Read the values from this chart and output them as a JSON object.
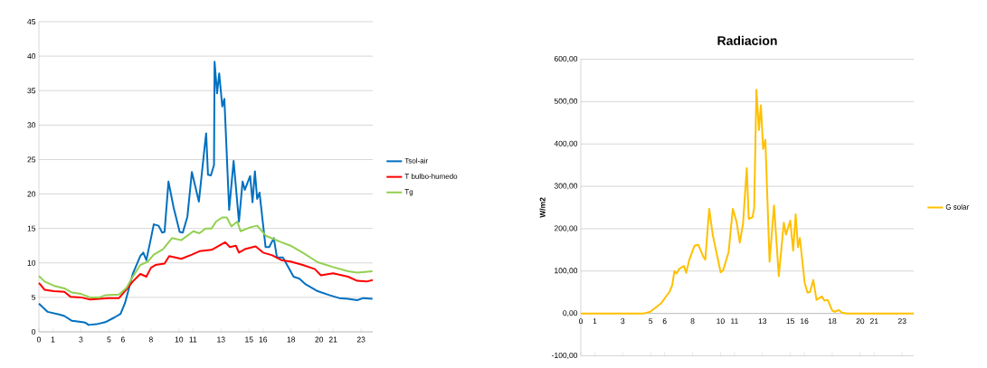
{
  "chart_data": [
    {
      "type": "line",
      "xlim": [
        0,
        23.83
      ],
      "ylim": [
        0,
        45
      ],
      "yticks": [
        0,
        5,
        10,
        15,
        20,
        25,
        30,
        35,
        40,
        45
      ],
      "xticks": [
        0,
        1,
        3,
        5,
        6,
        8,
        10,
        11,
        13,
        15,
        16,
        18,
        20,
        21,
        23
      ],
      "grid": "y",
      "legend": "right",
      "marker": "none",
      "line_style": "solid",
      "series": [
        {
          "name": "Tsol-air",
          "color": "#0070c0",
          "x": [
            0,
            0.63,
            1.5,
            1.82,
            2.36,
            3.12,
            3.34,
            3.55,
            4.1,
            4.74,
            5.4,
            5.83,
            6.15,
            6.7,
            7.24,
            7.45,
            7.67,
            8.0,
            8.2,
            8.54,
            8.8,
            8.97,
            9.25,
            9.62,
            10.05,
            10.27,
            10.6,
            10.92,
            11.42,
            11.85,
            11.94,
            12.07,
            12.28,
            12.5,
            12.54,
            12.72,
            12.87,
            13.09,
            13.24,
            13.58,
            13.9,
            14.28,
            14.54,
            14.7,
            15.08,
            15.25,
            15.42,
            15.58,
            15.75,
            16.18,
            16.44,
            16.77,
            16.99,
            17.42,
            18.18,
            18.6,
            19.04,
            19.9,
            20.78,
            21.43,
            22.07,
            22.72,
            23.16,
            23.81
          ],
          "values": [
            4.1,
            2.9,
            2.5,
            2.3,
            1.6,
            1.4,
            1.3,
            1.0,
            1.1,
            1.4,
            2.1,
            2.6,
            4.2,
            8.4,
            11.0,
            11.5,
            10.4,
            13.6,
            15.6,
            15.4,
            14.4,
            14.5,
            21.8,
            18.0,
            14.5,
            14.4,
            16.7,
            23.2,
            18.9,
            27.2,
            28.8,
            22.8,
            22.7,
            24.2,
            39.2,
            34.6,
            37.5,
            32.7,
            33.8,
            17.7,
            24.8,
            16.0,
            21.8,
            20.6,
            22.6,
            18.8,
            23.3,
            19.3,
            20.2,
            12.3,
            12.3,
            13.6,
            10.8,
            10.8,
            8.0,
            7.7,
            6.9,
            5.9,
            5.3,
            4.9,
            4.8,
            4.6,
            4.9,
            4.8
          ]
        },
        {
          "name": "T bulbo-humedo",
          "color": "#ff0000",
          "x": [
            0,
            0.41,
            1.06,
            1.82,
            2.25,
            3.0,
            3.66,
            4.3,
            4.96,
            5.72,
            6.26,
            6.7,
            7.24,
            7.67,
            8.0,
            8.32,
            8.97,
            9.3,
            10.16,
            10.92,
            11.46,
            12.33,
            13.3,
            13.63,
            14.06,
            14.28,
            14.7,
            15.47,
            16.0,
            16.66,
            17.31,
            17.96,
            18.83,
            19.7,
            20.13,
            21.0,
            22.07,
            22.72,
            23.38,
            23.83
          ],
          "values": [
            7.1,
            6.1,
            5.9,
            5.8,
            5.1,
            5.0,
            4.7,
            4.8,
            4.9,
            4.9,
            6.2,
            7.3,
            8.4,
            8.0,
            9.3,
            9.7,
            9.9,
            11.0,
            10.6,
            11.2,
            11.7,
            11.9,
            13.0,
            12.3,
            12.5,
            11.5,
            12.0,
            12.4,
            11.5,
            11.1,
            10.4,
            10.2,
            9.7,
            9.1,
            8.2,
            8.5,
            8.0,
            7.4,
            7.3,
            7.5
          ]
        },
        {
          "name": "Tg",
          "color": "#92d050",
          "x": [
            0,
            0.41,
            1.06,
            1.82,
            2.36,
            3.0,
            3.66,
            4.3,
            4.74,
            5.72,
            6.26,
            6.7,
            7.24,
            7.78,
            8.2,
            8.86,
            9.5,
            10.16,
            11.03,
            11.46,
            11.9,
            12.33,
            12.65,
            13.09,
            13.41,
            13.74,
            14.17,
            14.39,
            15.14,
            15.58,
            16.23,
            17.31,
            17.96,
            18.83,
            19.9,
            21.0,
            22.07,
            22.72,
            23.81
          ],
          "values": [
            8.1,
            7.3,
            6.7,
            6.3,
            5.7,
            5.5,
            5.0,
            5.0,
            5.3,
            5.4,
            6.4,
            8.0,
            9.7,
            10.2,
            11.2,
            12.0,
            13.6,
            13.3,
            14.6,
            14.3,
            15.0,
            15.0,
            16.0,
            16.6,
            16.6,
            15.3,
            16.0,
            14.6,
            15.2,
            15.4,
            13.9,
            13.0,
            12.5,
            11.5,
            10.1,
            9.4,
            8.8,
            8.6,
            8.8
          ]
        }
      ]
    },
    {
      "type": "line",
      "title": "Radiacion",
      "ylabel": "W/m2",
      "xlim": [
        0,
        23.83
      ],
      "ylim": [
        -100,
        600
      ],
      "yticks": [
        {
          "value": -100,
          "label": "-100,00"
        },
        {
          "value": 0,
          "label": "0,00"
        },
        {
          "value": 100,
          "label": "100,00"
        },
        {
          "value": 200,
          "label": "200,00"
        },
        {
          "value": 300,
          "label": "300,00"
        },
        {
          "value": 400,
          "label": "400,00"
        },
        {
          "value": 500,
          "label": "500,00"
        },
        {
          "value": 600,
          "label": "600,00"
        }
      ],
      "xticks": [
        0,
        1,
        3,
        5,
        6,
        8,
        10,
        11,
        13,
        15,
        16,
        18,
        20,
        21,
        23
      ],
      "grid": "y",
      "legend": "right",
      "marker": "none",
      "line_style": "solid",
      "series": [
        {
          "name": "G solar",
          "color": "#ffc000",
          "x": [
            0,
            4.52,
            4.98,
            5.78,
            6.01,
            6.35,
            6.54,
            6.7,
            6.86,
            7.04,
            7.38,
            7.54,
            7.77,
            8.14,
            8.41,
            8.75,
            8.91,
            9.19,
            9.44,
            10.01,
            10.19,
            10.58,
            10.88,
            11.15,
            11.38,
            11.61,
            11.88,
            12.02,
            12.29,
            12.41,
            12.57,
            12.75,
            12.89,
            13.05,
            13.21,
            13.51,
            13.83,
            14.17,
            14.53,
            14.69,
            14.99,
            15.2,
            15.38,
            15.54,
            15.68,
            16.02,
            16.23,
            16.41,
            16.64,
            16.87,
            17.25,
            17.44,
            17.67,
            18.01,
            18.19,
            18.46,
            18.69,
            19.04,
            23.83
          ],
          "values": [
            0,
            0,
            4,
            25,
            36,
            51,
            66,
            100,
            94,
            105,
            112,
            96,
            127,
            160,
            162,
            135,
            127,
            247,
            186,
            97,
            102,
            145,
            247,
            216,
            167,
            212,
            343,
            223,
            227,
            249,
            528,
            433,
            491,
            388,
            410,
            122,
            255,
            88,
            214,
            186,
            219,
            148,
            234,
            156,
            178,
            73,
            49,
            51,
            79,
            32,
            40,
            30,
            32,
            6,
            4,
            8,
            2,
            0,
            0
          ]
        }
      ]
    }
  ]
}
